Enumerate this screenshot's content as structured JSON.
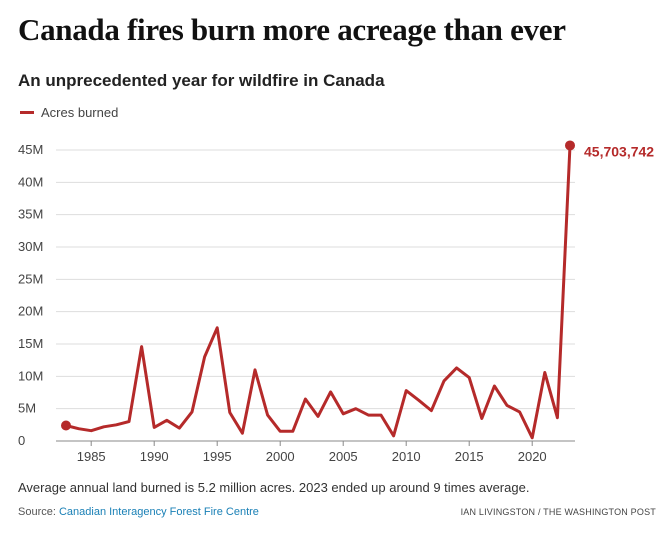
{
  "headline": "Canada fires burn more acreage than ever",
  "note": "Average annual land burned is 5.2 million acres. 2023 ended up around 9 times average.",
  "source": {
    "prefix": "Source: ",
    "name": "Canadian Interagency Forest Fire Centre"
  },
  "credit": "IAN LIVINGSTON / THE WASHINGTON POST",
  "colors": {
    "series": "#b52a2a",
    "grid": "#dddddd",
    "axis": "#888888",
    "link": "#1a80b6"
  },
  "chart_data": {
    "type": "line",
    "title": "An unprecedented year for wildfire in Canada",
    "xlabel": "",
    "ylabel": "",
    "xlim": [
      1983,
      2023
    ],
    "ylim": [
      0,
      45000000
    ],
    "grid": true,
    "legend": "top-left",
    "x_ticks": [
      1985,
      1990,
      1995,
      2000,
      2005,
      2010,
      2015,
      2020
    ],
    "x_tick_labels": [
      "1985",
      "1990",
      "1995",
      "2000",
      "2005",
      "2010",
      "2015",
      "2020"
    ],
    "y_ticks": [
      0,
      5000000,
      10000000,
      15000000,
      20000000,
      25000000,
      30000000,
      35000000,
      40000000,
      45000000
    ],
    "y_tick_labels": [
      "0",
      "5M",
      "10M",
      "15M",
      "20M",
      "25M",
      "30M",
      "35M",
      "40M",
      "45M"
    ],
    "series": [
      {
        "name": "Acres burned",
        "color": "#b52a2a",
        "x": [
          1983,
          1984,
          1985,
          1986,
          1987,
          1988,
          1989,
          1990,
          1991,
          1992,
          1993,
          1994,
          1995,
          1996,
          1997,
          1998,
          1999,
          2000,
          2001,
          2002,
          2003,
          2004,
          2005,
          2006,
          2007,
          2008,
          2009,
          2010,
          2011,
          2012,
          2013,
          2014,
          2015,
          2016,
          2017,
          2018,
          2019,
          2020,
          2021,
          2022,
          2023
        ],
        "y": [
          2400000,
          1900000,
          1600000,
          2200000,
          2500000,
          3000000,
          14600000,
          2100000,
          3200000,
          2000000,
          4500000,
          13000000,
          17500000,
          4400000,
          1200000,
          11000000,
          4000000,
          1500000,
          1500000,
          6500000,
          3800000,
          7600000,
          4200000,
          5000000,
          4000000,
          4000000,
          800000,
          7800000,
          6300000,
          4700000,
          9300000,
          11300000,
          9800000,
          3500000,
          8500000,
          5500000,
          4500000,
          500000,
          10600000,
          3600000,
          45703742
        ]
      }
    ],
    "endpoints": [
      {
        "x": 1983,
        "y": 2400000
      },
      {
        "x": 2023,
        "y": 45703742,
        "label": "45,703,742"
      }
    ]
  }
}
